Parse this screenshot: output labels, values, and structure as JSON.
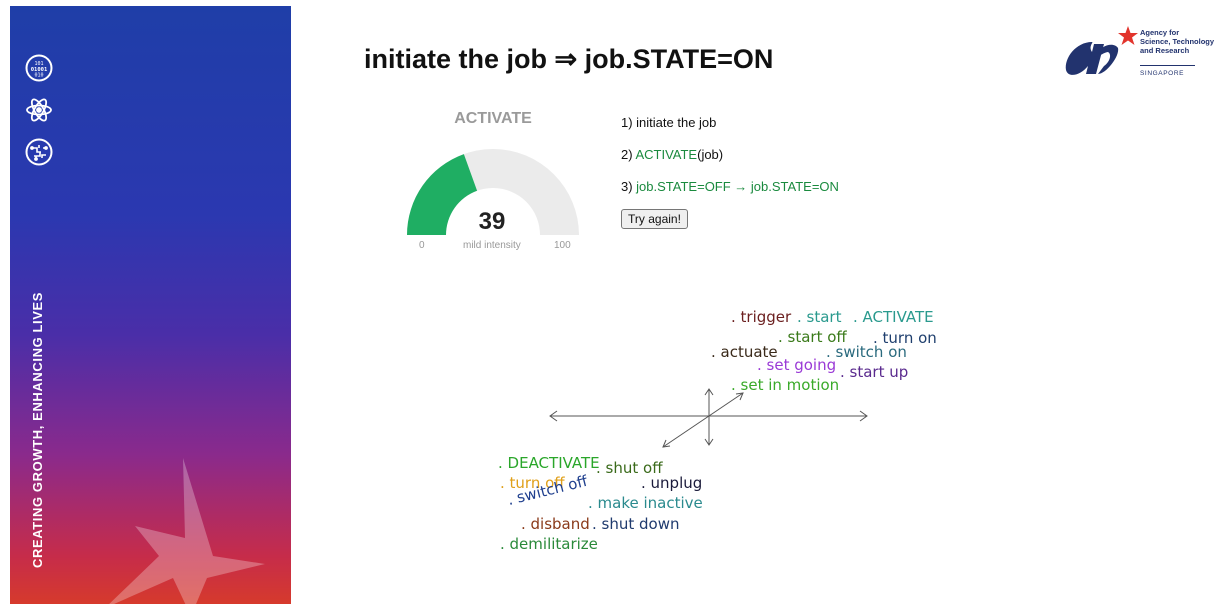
{
  "sidebar": {
    "tagline": "CREATING GROWTH, ENHANCING LIVES",
    "icons": [
      "binary-data-icon",
      "atom-icon",
      "circuit-brain-icon"
    ],
    "gradient_colors": [
      "#1f3ea8",
      "#4a2ea8",
      "#8a2a8c",
      "#d63a2c"
    ]
  },
  "header": {
    "title": "initiate the job ⇒ job.STATE=ON"
  },
  "logo": {
    "lines": [
      "Agency for",
      "Science, Technology",
      "and Research"
    ],
    "country": "SINGAPORE",
    "brand_color": "#22336e",
    "star_color": "#e2342c"
  },
  "gauge": {
    "title": "ACTIVATE",
    "value": 39,
    "min": 0,
    "max": 100,
    "min_label": "0",
    "max_label": "100",
    "intensity_label": "mild intensity",
    "fill_color": "#1fae63",
    "track_color": "#ebebeb"
  },
  "steps": {
    "step1": "1) initiate the job",
    "step2_prefix": "2) ",
    "step2_highlight": "ACTIVATE",
    "step2_suffix": "(job)",
    "step3_prefix": "3) ",
    "step3_highlight": "job.STATE=OFF → job.STATE=ON",
    "try_again_label": "Try again!"
  },
  "word_cloud": {
    "positive": [
      {
        "text": ". trigger",
        "color": "#6b1f1f"
      },
      {
        "text": ". start",
        "color": "#2a9a8e"
      },
      {
        "text": ". ACTIVATE",
        "color": "#2a9a8e"
      },
      {
        "text": ". start off",
        "color": "#3a7a1a"
      },
      {
        "text": ". turn on",
        "color": "#1f3f6e"
      },
      {
        "text": ". actuate",
        "color": "#3a2a1a"
      },
      {
        "text": ". switch on",
        "color": "#2a6a7e"
      },
      {
        "text": ". set going",
        "color": "#9a3ad6"
      },
      {
        "text": ". start up",
        "color": "#5a2a8e"
      },
      {
        "text": ". set in motion",
        "color": "#3aaa2a"
      }
    ],
    "negative": [
      {
        "text": ". DEACTIVATE",
        "color": "#2aa62a"
      },
      {
        "text": ". shut off",
        "color": "#3a6a1a"
      },
      {
        "text": ". turn off",
        "color": "#e0a01a"
      },
      {
        "text": ". unplug",
        "color": "#1a1a3a"
      },
      {
        "text": ". switch off",
        "color": "#1f3f8e"
      },
      {
        "text": ". make inactive",
        "color": "#2a8a8e"
      },
      {
        "text": ". disband",
        "color": "#8a3a1a"
      },
      {
        "text": ". shut down",
        "color": "#1f3a6e"
      },
      {
        "text": ". demilitarize",
        "color": "#2a8a3a"
      }
    ]
  }
}
